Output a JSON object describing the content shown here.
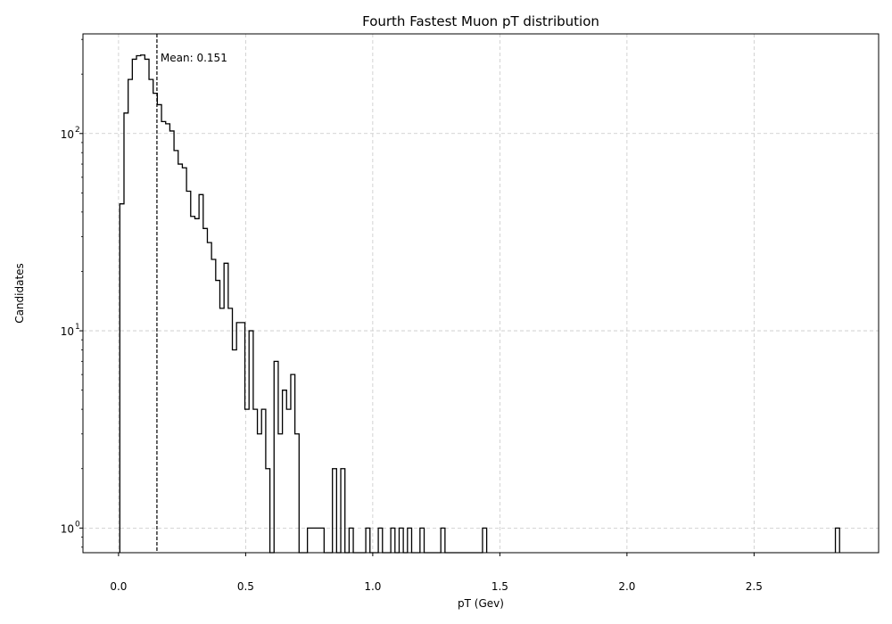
{
  "chart_data": {
    "type": "histogram",
    "title": "Fourth Fastest Muon pT distribution",
    "xlabel": "pT (Gev)",
    "ylabel": "Candidates",
    "xlim": [
      -0.14,
      2.99
    ],
    "ylim": [
      0.75,
      320
    ],
    "yscale": "log",
    "grid": true,
    "x_ticks": [
      0.0,
      0.5,
      1.0,
      1.5,
      2.0,
      2.5
    ],
    "x_tick_labels": [
      "0.0",
      "0.5",
      "1.0",
      "1.5",
      "2.0",
      "2.5"
    ],
    "y_ticks": [
      1,
      10,
      100
    ],
    "y_tick_labels": [
      "10",
      "10",
      "10"
    ],
    "y_tick_exponents": [
      "0",
      "1",
      "2"
    ],
    "bin_width": 0.0164,
    "x_start": 0.005,
    "counts": [
      44,
      127,
      188,
      238,
      248,
      250,
      238,
      188,
      160,
      140,
      115,
      112,
      103,
      82,
      70,
      67,
      51,
      38,
      37,
      49,
      33,
      28,
      23,
      18,
      13,
      22,
      13,
      8,
      11,
      11,
      4,
      10,
      4,
      3,
      4,
      2,
      0,
      7,
      3,
      5,
      4,
      6,
      3,
      0,
      0,
      1,
      1,
      1,
      1,
      0,
      0,
      2,
      0,
      2,
      0,
      1,
      0,
      0,
      0,
      1,
      0,
      0,
      1,
      0,
      0,
      1,
      0,
      1,
      0,
      1,
      0,
      0,
      1,
      0,
      0,
      0,
      0,
      1,
      0,
      0,
      0,
      0,
      0,
      0,
      0,
      0,
      0,
      1
    ],
    "outliers": [
      {
        "x": 2.82,
        "count": 1
      }
    ],
    "annotations": [
      {
        "label": "Mean: 0.151",
        "x": 0.151
      }
    ]
  }
}
